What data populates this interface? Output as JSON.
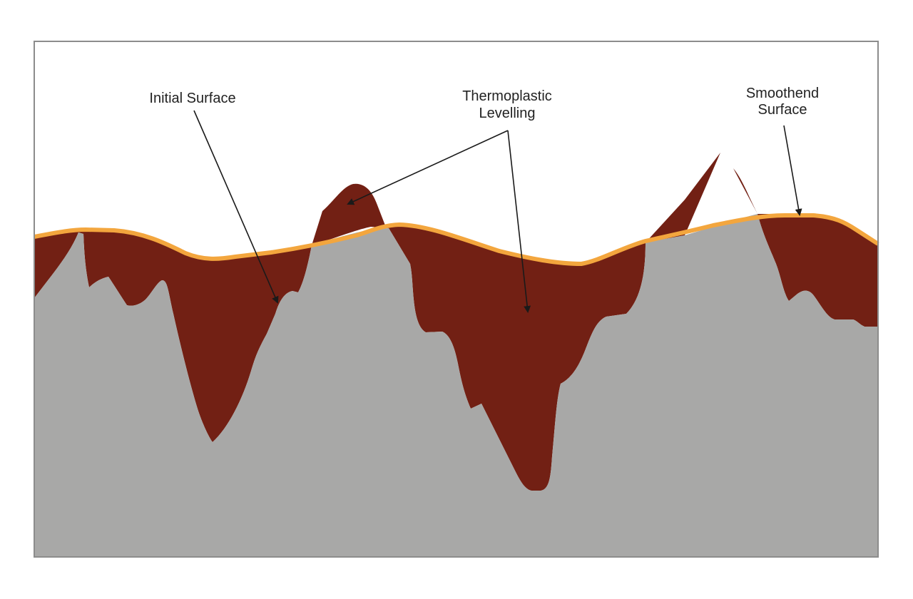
{
  "labels": {
    "initial_surface": "Initial Surface",
    "thermoplastic_line1": "Thermoplastic",
    "thermoplastic_line2": "Levelling",
    "smoothend_line1": "Smoothend",
    "smoothend_line2": "Surface"
  },
  "colors": {
    "substrate": "#a8a8a7",
    "thermoplastic": "#722014",
    "smoothed_line": "#f3a63e",
    "frame": "#8c8c8c",
    "arrow": "#1a1a1a"
  }
}
